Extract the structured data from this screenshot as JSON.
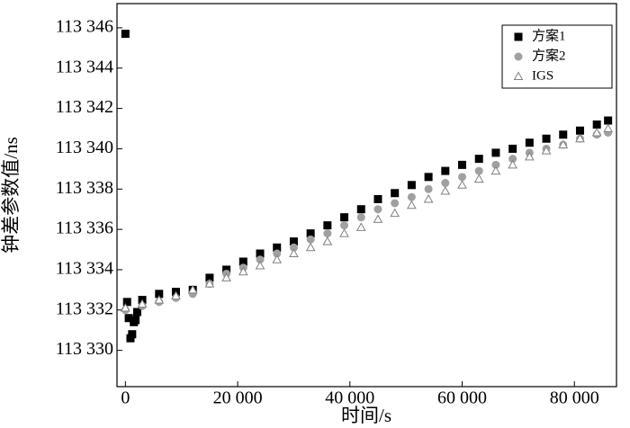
{
  "chart_data": {
    "type": "scatter",
    "x_label": "时间/s",
    "y_label": "钟差参数值/ns",
    "xlim": [
      -1500,
      87500
    ],
    "ylim": [
      113328.2,
      113347.2
    ],
    "xticks": [
      0,
      {
        "value": 20000,
        "label": "20 000"
      },
      {
        "value": 40000,
        "label": "40 000"
      },
      {
        "value": 60000,
        "label": "60 000"
      },
      {
        "value": 80000,
        "label": "80 000"
      }
    ],
    "yticks": [
      {
        "value": 113330,
        "label": "113 330"
      },
      {
        "value": 113332,
        "label": "113 332"
      },
      {
        "value": 113334,
        "label": "113 334"
      },
      {
        "value": 113336,
        "label": "113 336"
      },
      {
        "value": 113338,
        "label": "113 338"
      },
      {
        "value": 113340,
        "label": "113 340"
      },
      {
        "value": 113342,
        "label": "113 342"
      },
      {
        "value": 113344,
        "label": "113 344"
      },
      {
        "value": 113346,
        "label": "113 346"
      }
    ],
    "legend": "upper right",
    "series": [
      {
        "name": "方案1",
        "color": "#000000",
        "marker": "square",
        "x": [
          0,
          300,
          600,
          900,
          1200,
          1500,
          1800,
          2100,
          3000,
          6000,
          9000,
          12000,
          15000,
          18000,
          21000,
          24000,
          27000,
          30000,
          33000,
          36000,
          39000,
          42000,
          45000,
          48000,
          51000,
          54000,
          57000,
          60000,
          63000,
          66000,
          69000,
          72000,
          75000,
          78000,
          81000,
          84000,
          86000
        ],
        "values": [
          113345.7,
          113332.4,
          113331.6,
          113330.6,
          113330.8,
          113331.4,
          113331.5,
          113331.9,
          113332.5,
          113332.8,
          113332.9,
          113333.0,
          113333.6,
          113334.0,
          113334.4,
          113334.8,
          113335.1,
          113335.4,
          113335.8,
          113336.2,
          113336.6,
          113337.0,
          113337.5,
          113337.8,
          113338.2,
          113338.6,
          113338.9,
          113339.2,
          113339.5,
          113339.8,
          113340.0,
          113340.3,
          113340.5,
          113340.7,
          113340.9,
          113341.2,
          113341.4
        ]
      },
      {
        "name": "方案2",
        "color": "#a0a0a0",
        "marker": "circle",
        "x": [
          0,
          3000,
          6000,
          9000,
          12000,
          15000,
          18000,
          21000,
          24000,
          27000,
          30000,
          33000,
          36000,
          39000,
          42000,
          45000,
          48000,
          51000,
          54000,
          57000,
          60000,
          63000,
          66000,
          69000,
          72000,
          75000,
          78000,
          81000,
          84000,
          86000
        ],
        "values": [
          113332.0,
          113332.2,
          113332.4,
          113332.6,
          113332.8,
          113333.3,
          113333.8,
          113334.1,
          113334.5,
          113334.8,
          113335.1,
          113335.5,
          113335.8,
          113336.2,
          113336.6,
          113337.0,
          113337.3,
          113337.6,
          113338.0,
          113338.3,
          113338.6,
          113338.9,
          113339.2,
          113339.5,
          113339.8,
          113340.0,
          113340.2,
          113340.5,
          113340.7,
          113340.8
        ]
      },
      {
        "name": "IGS",
        "color": "#808080",
        "marker": "triangle",
        "x": [
          0,
          3000,
          6000,
          9000,
          12000,
          15000,
          18000,
          21000,
          24000,
          27000,
          30000,
          33000,
          36000,
          39000,
          42000,
          45000,
          48000,
          51000,
          54000,
          57000,
          60000,
          63000,
          66000,
          69000,
          72000,
          75000,
          78000,
          81000,
          84000,
          86000
        ],
        "values": [
          113332.1,
          113332.3,
          113332.5,
          113332.7,
          113333.0,
          113333.3,
          113333.6,
          113333.9,
          113334.2,
          113334.5,
          113334.8,
          113335.1,
          113335.4,
          113335.8,
          113336.1,
          113336.5,
          113336.8,
          113337.2,
          113337.5,
          113337.9,
          113338.2,
          113338.5,
          113338.9,
          113339.2,
          113339.6,
          113339.9,
          113340.2,
          113340.5,
          113340.8,
          113341.0
        ]
      }
    ]
  }
}
